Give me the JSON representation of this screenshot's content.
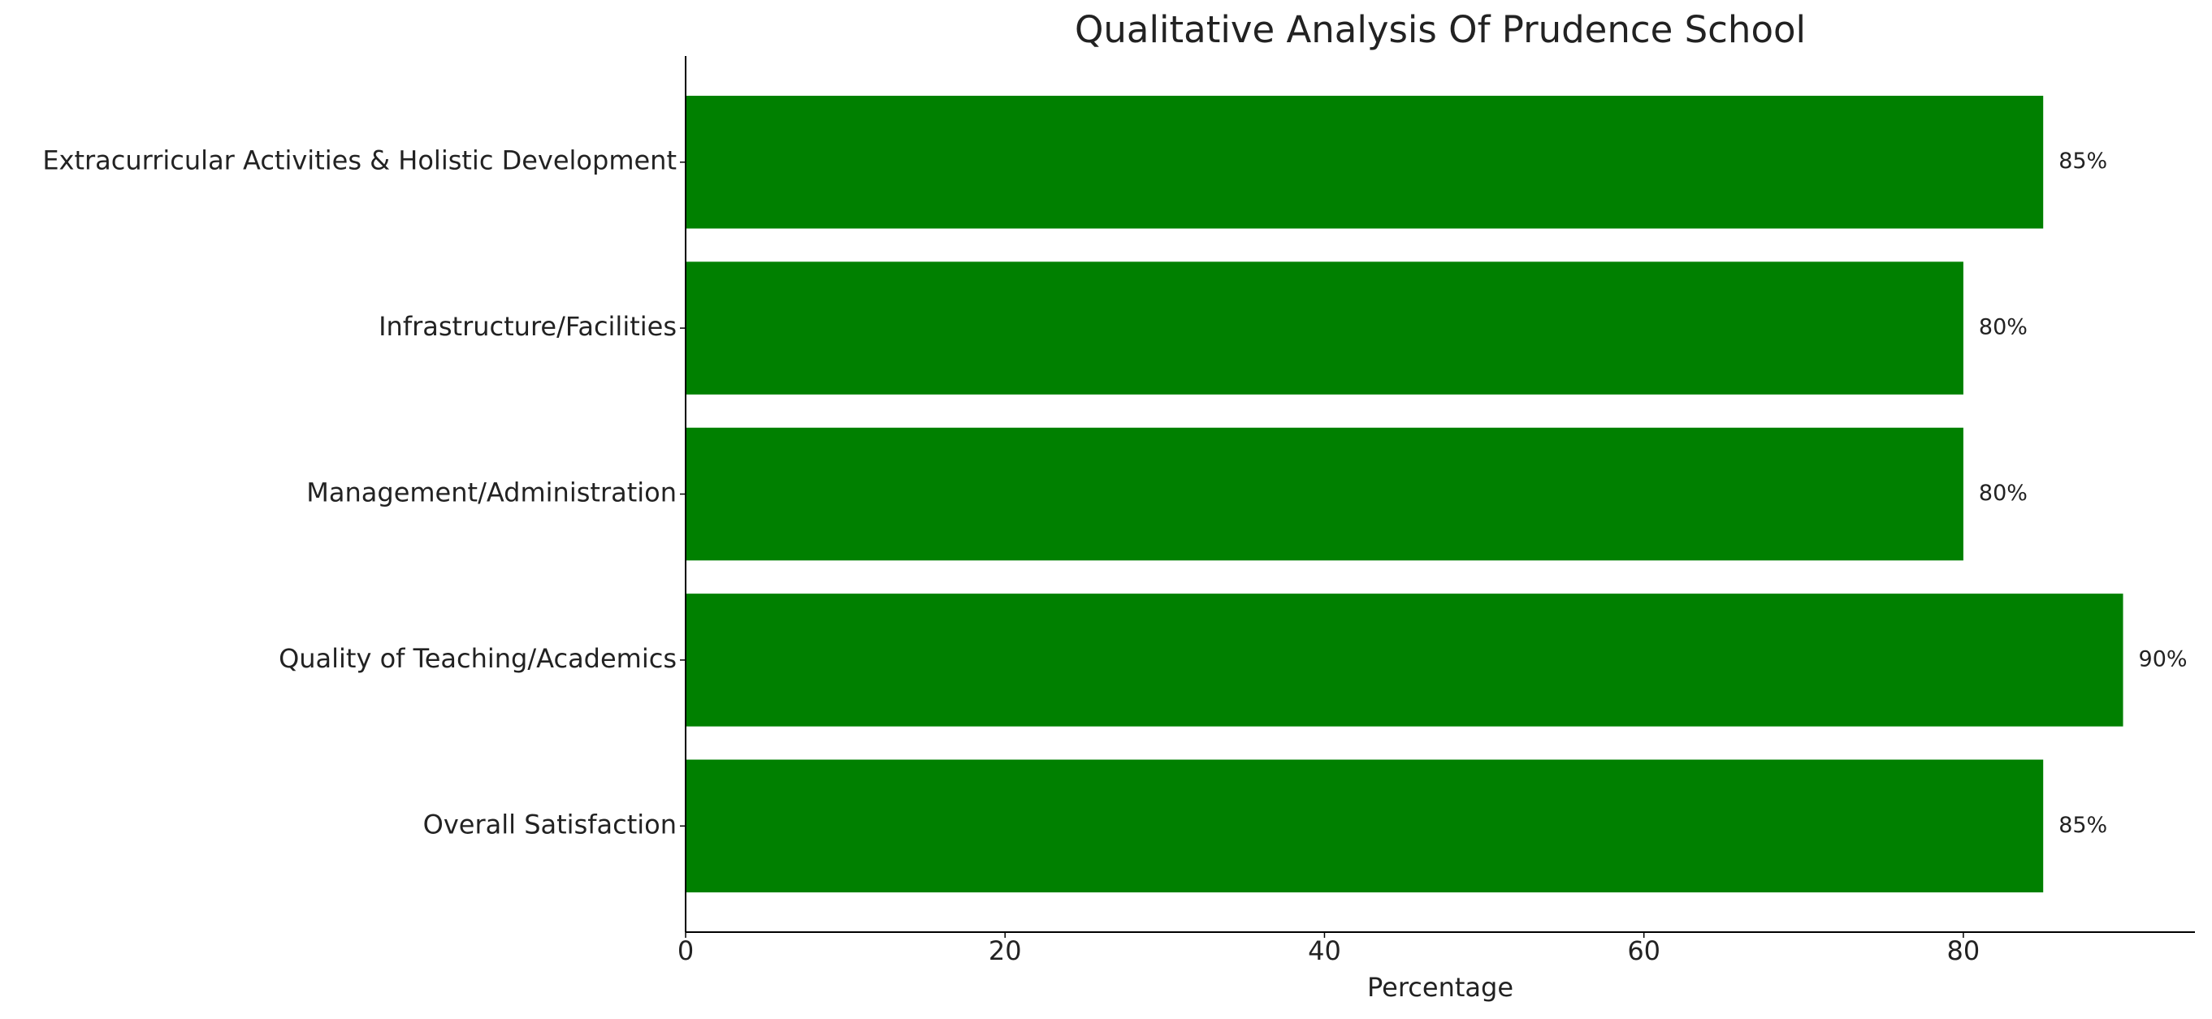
{
  "chart_data": {
    "type": "bar",
    "orientation": "horizontal",
    "title": "Qualitative Analysis Of Prudence School",
    "xlabel": "Percentage",
    "categories": [
      "Overall Satisfaction",
      "Quality of Teaching/Academics",
      "Management/Administration",
      "Infrastructure/Facilities",
      "Extracurricular Activities & Holistic Development"
    ],
    "values": [
      85,
      90,
      80,
      80,
      85
    ],
    "value_labels": [
      "85%",
      "90%",
      "80%",
      "80%",
      "85%"
    ],
    "color": "#008000",
    "xlim": [
      0,
      94.5
    ],
    "xticks": [
      0,
      20,
      40,
      60,
      80
    ],
    "grid": false
  }
}
